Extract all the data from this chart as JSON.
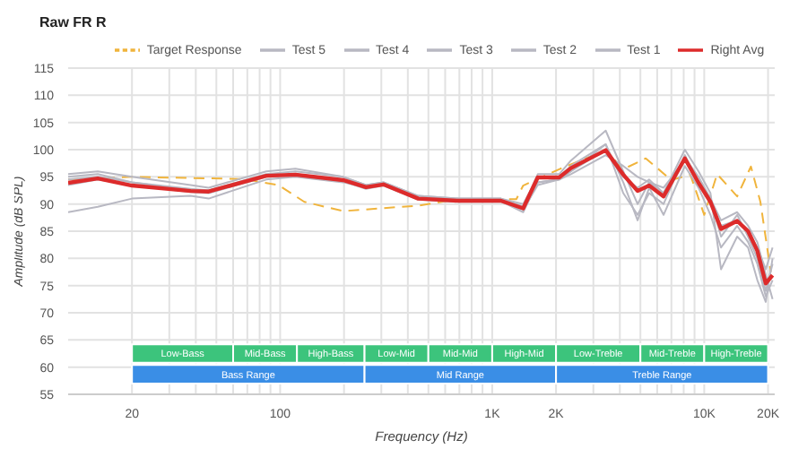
{
  "chart_data": {
    "type": "line",
    "title": "Raw FR R",
    "xlabel": "Frequency (Hz)",
    "ylabel": "Amplitude (dB SPL)",
    "log": "x",
    "x": [
      10,
      13.8,
      20,
      37.8,
      46,
      86,
      118,
      198,
      254,
      307,
      448,
      695,
      1100,
      1400,
      1640,
      2070,
      2350,
      3430,
      4150,
      4850,
      5500,
      6430,
      8100,
      9400,
      10700,
      12000,
      14300,
      16100,
      17800,
      19500,
      21000
    ],
    "series": [
      {
        "name": "Right Avg",
        "color": "#dd2b2b",
        "values": [
          93.9,
          94.7,
          93.4,
          92.4,
          92.3,
          95.2,
          95.4,
          94.4,
          93.1,
          93.6,
          91,
          90.6,
          90.6,
          89.2,
          94.9,
          94.9,
          96.6,
          99.9,
          95.4,
          92.4,
          93.4,
          91.4,
          98.4,
          93.9,
          90.4,
          85.4,
          86.9,
          85,
          81.4,
          75.4,
          76.9
        ]
      },
      {
        "name": "Test 1",
        "color": "#b8b8c2",
        "values": [
          88.5,
          89.5,
          91,
          91.5,
          91,
          94.5,
          95,
          94,
          93,
          93.5,
          91,
          90.5,
          90.5,
          88.5,
          94,
          94.5,
          96,
          101,
          92,
          88,
          92,
          90,
          99,
          94,
          91,
          84,
          88,
          84,
          80,
          74,
          79
        ]
      },
      {
        "name": "Test 2",
        "color": "#b8b8c2",
        "values": [
          95.5,
          96,
          95,
          93.5,
          93,
          96,
          96.5,
          95,
          93.5,
          94,
          91.5,
          91,
          91,
          89.5,
          95.5,
          95.5,
          98,
          103.5,
          96,
          90,
          94,
          92,
          100,
          96,
          92,
          78,
          84,
          82,
          76,
          72,
          80
        ]
      },
      {
        "name": "Test 3",
        "color": "#b8b8c2",
        "values": [
          95,
          95.5,
          94,
          92.5,
          92.5,
          95.5,
          96,
          95,
          93.5,
          94,
          91.5,
          91,
          91,
          90,
          95,
          95,
          97,
          101,
          94,
          87,
          93,
          88,
          97,
          93,
          88,
          82,
          86,
          83,
          79,
          73,
          76
        ]
      },
      {
        "name": "Test 4",
        "color": "#b8b8c2",
        "values": [
          94.5,
          95,
          94,
          92.8,
          92.5,
          95.2,
          95.5,
          94.5,
          93.2,
          93.8,
          91.2,
          90.8,
          90.8,
          89.5,
          94,
          94.5,
          96,
          100,
          95,
          93,
          94.5,
          92,
          98.5,
          95,
          91,
          87,
          88.5,
          86,
          83,
          77,
          72.5
        ]
      },
      {
        "name": "Test 5",
        "color": "#b8b8c2",
        "values": [
          93.5,
          94.5,
          93.5,
          92.2,
          92,
          95,
          95.2,
          94.2,
          92.8,
          93.4,
          90.8,
          90.4,
          90.4,
          89,
          93.5,
          94.5,
          95.5,
          99,
          97,
          95,
          94,
          93,
          98,
          94,
          90,
          86,
          87,
          85,
          82,
          78,
          82
        ]
      },
      {
        "name": "Target Response",
        "color": "#f0b43c",
        "line_style": "dashed",
        "x": [
          10,
          20,
          67,
          98,
          130,
          198,
          448,
          695,
          1300,
          1400,
          2070,
          3430,
          4150,
          5300,
          7000,
          8600,
          10000,
          11500,
          14300,
          16600,
          18400,
          20600
        ],
        "values": [
          94.5,
          95,
          94.6,
          93.5,
          90.4,
          88.7,
          89.7,
          90.9,
          90.9,
          93.4,
          96.4,
          99.9,
          96.4,
          98.4,
          94.4,
          95.4,
          88,
          95.5,
          91.4,
          96.9,
          90.4,
          77.5
        ]
      }
    ],
    "xlim": [
      10,
      21500
    ],
    "ylim": [
      55,
      115
    ],
    "xticks": [
      {
        "value": 20,
        "label": "20"
      },
      {
        "value": 30,
        "label": null
      },
      {
        "value": 40,
        "label": null
      },
      {
        "value": 50,
        "label": null
      },
      {
        "value": 60,
        "label": null
      },
      {
        "value": 70,
        "label": null
      },
      {
        "value": 80,
        "label": null
      },
      {
        "value": 90,
        "label": null
      },
      {
        "value": 100,
        "label": "100"
      },
      {
        "value": 200,
        "label": null
      },
      {
        "value": 300,
        "label": null
      },
      {
        "value": 400,
        "label": null
      },
      {
        "value": 500,
        "label": null
      },
      {
        "value": 600,
        "label": null
      },
      {
        "value": 700,
        "label": null
      },
      {
        "value": 800,
        "label": null
      },
      {
        "value": 900,
        "label": null
      },
      {
        "value": 1000,
        "label": "1K"
      },
      {
        "value": 2000,
        "label": "2K"
      },
      {
        "value": 3000,
        "label": null
      },
      {
        "value": 4000,
        "label": null
      },
      {
        "value": 5000,
        "label": null
      },
      {
        "value": 6000,
        "label": null
      },
      {
        "value": 7000,
        "label": null
      },
      {
        "value": 8000,
        "label": null
      },
      {
        "value": 9000,
        "label": null
      },
      {
        "value": 10000,
        "label": "10K"
      },
      {
        "value": 20000,
        "label": "20K"
      }
    ],
    "yticks": [
      55,
      60,
      65,
      70,
      75,
      80,
      85,
      90,
      95,
      100,
      105,
      110,
      115
    ],
    "grid": true,
    "legend": "top",
    "marker": "none",
    "bands": [
      {
        "axis": "x",
        "from": 20,
        "to": 60,
        "label": "Low-Bass",
        "color": "#3cc47c"
      },
      {
        "axis": "x",
        "from": 60,
        "to": 120,
        "label": "Mid-Bass",
        "color": "#3cc47c"
      },
      {
        "axis": "x",
        "from": 120,
        "to": 250,
        "label": "High-Bass",
        "color": "#3cc47c"
      },
      {
        "axis": "x",
        "from": 250,
        "to": 500,
        "label": "Low-Mid",
        "color": "#3cc47c"
      },
      {
        "axis": "x",
        "from": 500,
        "to": 1000,
        "label": "Mid-Mid",
        "color": "#3cc47c"
      },
      {
        "axis": "x",
        "from": 1000,
        "to": 2000,
        "label": "High-Mid",
        "color": "#3cc47c"
      },
      {
        "axis": "x",
        "from": 2000,
        "to": 5000,
        "label": "Low-Treble",
        "color": "#3cc47c"
      },
      {
        "axis": "x",
        "from": 5000,
        "to": 10000,
        "label": "Mid-Treble",
        "color": "#3cc47c"
      },
      {
        "axis": "x",
        "from": 10000,
        "to": 20000,
        "label": "High-Treble",
        "color": "#3cc47c"
      },
      {
        "axis": "x",
        "from": 20,
        "to": 250,
        "label": "Bass Range",
        "color": "#3a8ee6"
      },
      {
        "axis": "x",
        "from": 250,
        "to": 2000,
        "label": "Mid Range",
        "color": "#3a8ee6"
      },
      {
        "axis": "x",
        "from": 2000,
        "to": 20000,
        "label": "Treble Range",
        "color": "#3a8ee6"
      }
    ]
  }
}
